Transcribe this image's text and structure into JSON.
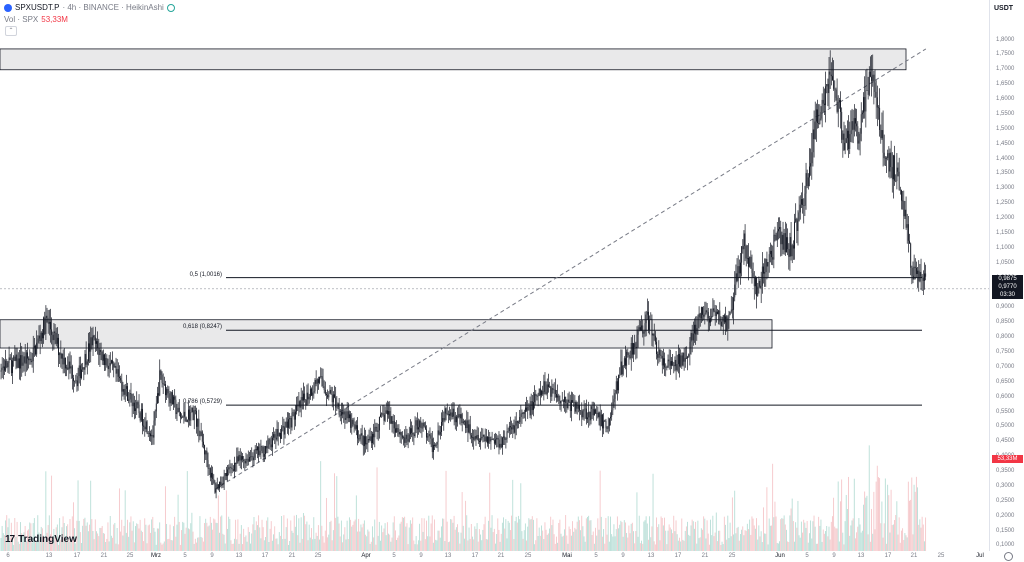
{
  "header": {
    "symbol": "SPXUSDT.P",
    "meta": " · 4h · BINANCE · HeikinAshi",
    "volume_label": "Vol · SPX",
    "volume_value": "53,33M"
  },
  "price_scale": {
    "currency": "USDT",
    "ticks": [
      "1,8000",
      "1,7500",
      "1,7000",
      "1,6500",
      "1,6000",
      "1,5500",
      "1,5000",
      "1,4500",
      "1,4000",
      "1,3500",
      "1,3000",
      "1,2500",
      "1,2000",
      "1,1500",
      "1,1000",
      "1,0500",
      "1,0000",
      "0,9500",
      "0,9000",
      "0,8500",
      "0,8000",
      "0,7500",
      "0,7000",
      "0,6500",
      "0,6000",
      "0,5500",
      "0,5000",
      "0,4500",
      "0,4000",
      "0,3500",
      "0,3000",
      "0,2500",
      "0,2000",
      "0,1500",
      "0,1000"
    ],
    "last_price": "0,9875",
    "mark_price": "0,9770",
    "countdown": "03:30",
    "volume_badge": "53,33M"
  },
  "time_axis": [
    "6",
    "13",
    "17",
    "21",
    "25",
    "Mrz",
    "5",
    "9",
    "13",
    "17",
    "21",
    "25",
    "Apr",
    "5",
    "9",
    "13",
    "17",
    "21",
    "25",
    "Mai",
    "5",
    "9",
    "13",
    "17",
    "21",
    "25",
    "Jun",
    "5",
    "9",
    "13",
    "17",
    "21",
    "25",
    "Jul"
  ],
  "fib_levels": [
    {
      "label": "0,5 (1,0016)",
      "price": 1.0016
    },
    {
      "label": "0,618 (0,8247)",
      "price": 0.8247
    },
    {
      "label": "0,786 (0,5729)",
      "price": 0.5729
    }
  ],
  "zones": [
    {
      "name": "resistance-zone",
      "top": 1.77,
      "bottom": 1.7
    },
    {
      "name": "support-zone",
      "top": 0.86,
      "bottom": 0.765
    }
  ],
  "trendline": {
    "from": {
      "date": "Mrz 10",
      "price": 0.29
    },
    "to": {
      "date": "Jun 23",
      "price": 1.77
    }
  },
  "colors": {
    "candle": "#131722",
    "vol_up": "#b7ded6",
    "vol_down": "#f5c6c9",
    "red": "#f23645",
    "zone_fill": "#e9e9ea"
  },
  "branding": {
    "logo_text": "TradingView"
  },
  "chart_data": {
    "type": "line",
    "title": "SPXUSDT.P · 4h · BINANCE · HeikinAshi",
    "xlabel": "",
    "ylabel": "",
    "ylim": [
      0.1,
      1.8
    ],
    "grid": false,
    "series": [
      {
        "values": [
          {
            "x": "Feb 06",
            "y": 0.65
          },
          {
            "x": "Feb 09",
            "y": 0.7
          },
          {
            "x": "Feb 13",
            "y": 0.73
          },
          {
            "x": "Feb 15",
            "y": 0.86
          },
          {
            "x": "Feb 17",
            "y": 0.74
          },
          {
            "x": "Feb 19",
            "y": 0.66
          },
          {
            "x": "Feb 21",
            "y": 0.79
          },
          {
            "x": "Feb 25",
            "y": 0.64
          },
          {
            "x": "Mrz 01",
            "y": 0.47
          },
          {
            "x": "Mrz 02",
            "y": 0.67
          },
          {
            "x": "Mrz 05",
            "y": 0.53
          },
          {
            "x": "Mrz 07",
            "y": 0.55
          },
          {
            "x": "Mrz 10",
            "y": 0.29
          },
          {
            "x": "Mrz 13",
            "y": 0.38
          },
          {
            "x": "Mrz 17",
            "y": 0.42
          },
          {
            "x": "Mrz 21",
            "y": 0.52
          },
          {
            "x": "Mrz 25",
            "y": 0.66
          },
          {
            "x": "Mrz 28",
            "y": 0.57
          },
          {
            "x": "Apr 01",
            "y": 0.44
          },
          {
            "x": "Apr 04",
            "y": 0.55
          },
          {
            "x": "Apr 07",
            "y": 0.45
          },
          {
            "x": "Apr 09",
            "y": 0.52
          },
          {
            "x": "Apr 11",
            "y": 0.43
          },
          {
            "x": "Apr 13",
            "y": 0.57
          },
          {
            "x": "Apr 17",
            "y": 0.48
          },
          {
            "x": "Apr 21",
            "y": 0.45
          },
          {
            "x": "Apr 25",
            "y": 0.55
          },
          {
            "x": "Apr 28",
            "y": 0.64
          },
          {
            "x": "Mai 01",
            "y": 0.58
          },
          {
            "x": "Mai 05",
            "y": 0.54
          },
          {
            "x": "Mai 07",
            "y": 0.5
          },
          {
            "x": "Mai 09",
            "y": 0.7
          },
          {
            "x": "Mai 12",
            "y": 0.83
          },
          {
            "x": "Mai 13",
            "y": 0.86
          },
          {
            "x": "Mai 15",
            "y": 0.71
          },
          {
            "x": "Mai 17",
            "y": 0.7
          },
          {
            "x": "Mai 19",
            "y": 0.77
          },
          {
            "x": "Mai 21",
            "y": 0.88
          },
          {
            "x": "Mai 25",
            "y": 0.85
          },
          {
            "x": "Mai 27",
            "y": 1.13
          },
          {
            "x": "Mai 29",
            "y": 0.95
          },
          {
            "x": "Jun 01",
            "y": 1.14
          },
          {
            "x": "Jun 03",
            "y": 1.1
          },
          {
            "x": "Jun 05",
            "y": 1.28
          },
          {
            "x": "Jun 07",
            "y": 1.55
          },
          {
            "x": "Jun 09",
            "y": 1.7
          },
          {
            "x": "Jun 11",
            "y": 1.46
          },
          {
            "x": "Jun 13",
            "y": 1.5
          },
          {
            "x": "Jun 15",
            "y": 1.68
          },
          {
            "x": "Jun 17",
            "y": 1.4
          },
          {
            "x": "Jun 19",
            "y": 1.35
          },
          {
            "x": "Jun 21",
            "y": 1.02
          },
          {
            "x": "Jun 23",
            "y": 0.98
          }
        ]
      }
    ]
  }
}
